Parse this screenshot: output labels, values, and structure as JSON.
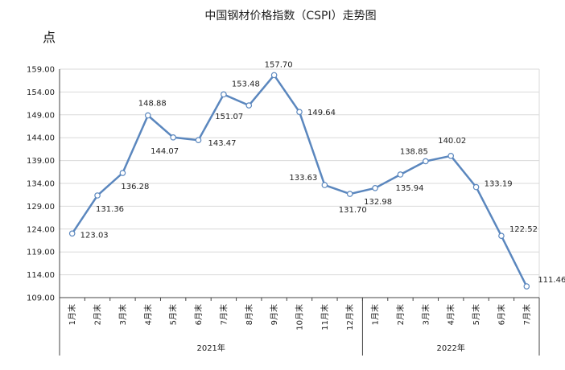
{
  "chart_data": {
    "type": "line",
    "title": "中国钢材价格指数（CSPI）走势图",
    "ylabel": "点",
    "ylim": [
      109,
      159
    ],
    "y_ticks": [
      "159.00",
      "154.00",
      "149.00",
      "144.00",
      "139.00",
      "134.00",
      "129.00",
      "124.00",
      "119.00",
      "114.00",
      "109.00"
    ],
    "grid": true,
    "categories": [
      "1月末",
      "2月末",
      "3月末",
      "4月末",
      "5月末",
      "6月末",
      "7月末",
      "8月末",
      "9月末",
      "10月末",
      "11月末",
      "12月末",
      "1月末",
      "2月末",
      "3月末",
      "4月末",
      "5月末",
      "6月末",
      "7月末"
    ],
    "groups": [
      {
        "label": "2021年",
        "count": 12
      },
      {
        "label": "2022年",
        "count": 7
      }
    ],
    "series": [
      {
        "color": "#5b87be",
        "values": [
          123.03,
          131.36,
          136.28,
          148.88,
          144.07,
          143.47,
          153.48,
          151.07,
          157.7,
          149.64,
          133.63,
          131.7,
          132.98,
          135.94,
          138.85,
          140.02,
          133.19,
          122.52,
          111.46
        ],
        "labels": [
          "123.03",
          "131.36",
          "136.28",
          "148.88",
          "144.07",
          "143.47",
          "153.48",
          "151.07",
          "157.70",
          "149.64",
          "133.63",
          "131.70",
          "132.98",
          "135.94",
          "138.85",
          "140.02",
          "133.19",
          "122.52",
          "111.46"
        ]
      }
    ]
  }
}
